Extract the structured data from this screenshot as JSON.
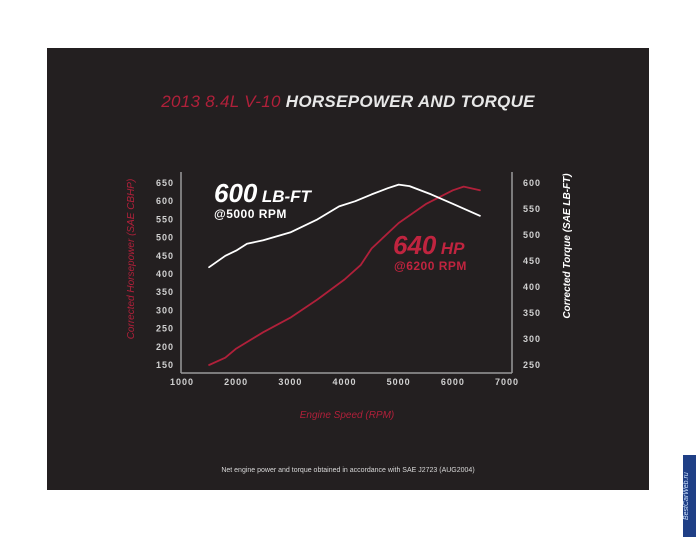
{
  "title_part1": "2013 8.4L V-10",
  "title_part2": "HORSEPOWER AND TORQUE",
  "footnote": "Net engine power and torque obtained in accordance with SAE J2723 (AUG2004)",
  "watermark": "BestCarWeb.ru",
  "colors": {
    "background": "#231f20",
    "hp": "#b0203a",
    "torque": "#ffffff",
    "axis": "#9a9a9a"
  },
  "annotations": {
    "torque": {
      "value": "600",
      "unit": "LB-FT",
      "rpm": "@5000 RPM"
    },
    "hp": {
      "value": "640",
      "unit": "HP",
      "rpm": "@6200 RPM"
    }
  },
  "chart_data": {
    "type": "line",
    "title": "2013 8.4L V-10 HORSEPOWER AND TORQUE",
    "xlabel": "Engine Speed (RPM)",
    "ylabel_left": "Corrected Horsepower (SAE CBHP)",
    "ylabel_right": "Corrected Torque (SAE LB-FT)",
    "xlim": [
      1000,
      7000
    ],
    "ylim_left": [
      150,
      650
    ],
    "ylim_right": [
      250,
      600
    ],
    "x_ticks": [
      1000,
      2000,
      3000,
      4000,
      5000,
      6000,
      7000
    ],
    "y_left_ticks": [
      150,
      200,
      250,
      300,
      350,
      400,
      450,
      500,
      550,
      600,
      650
    ],
    "y_right_ticks": [
      250,
      300,
      350,
      400,
      450,
      500,
      550,
      600
    ],
    "grid": false,
    "series": [
      {
        "axis": "left",
        "color": "#b0203a",
        "x": [
          1500,
          1800,
          2000,
          2500,
          3000,
          3500,
          4000,
          4300,
          4500,
          5000,
          5500,
          6000,
          6200,
          6500
        ],
        "values": [
          150,
          170,
          195,
          240,
          280,
          330,
          385,
          425,
          470,
          540,
          592,
          630,
          640,
          630
        ]
      },
      {
        "axis": "right",
        "color": "#ffffff",
        "x": [
          1500,
          1800,
          2000,
          2200,
          2500,
          3000,
          3500,
          3900,
          4200,
          4500,
          4800,
          5000,
          5200,
          5600,
          6000,
          6500
        ],
        "values": [
          438,
          460,
          470,
          483,
          490,
          505,
          530,
          555,
          565,
          578,
          590,
          597,
          594,
          578,
          560,
          537
        ]
      }
    ]
  }
}
